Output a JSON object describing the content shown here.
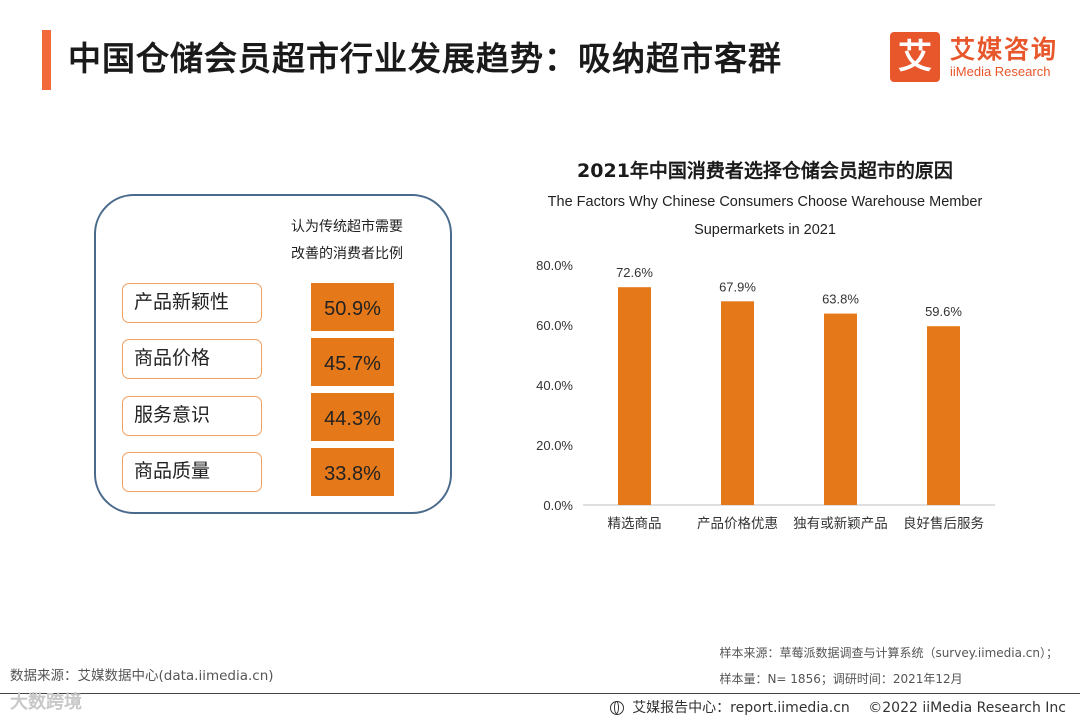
{
  "header": {
    "title": "中国仓储会员超市行业发展趋势：吸纳超市客群",
    "accent_color": "#f2693a"
  },
  "logo": {
    "glyph": "艾",
    "cn": "艾媒咨询",
    "en": "iiMedia Research",
    "color": "#e8562b"
  },
  "left_panel": {
    "header_line1": "认为传统超市需要",
    "header_line2": "改善的消费者比例",
    "items": [
      {
        "label": "产品新颖性",
        "value": "50.9%"
      },
      {
        "label": "商品价格",
        "value": "45.7%"
      },
      {
        "label": "服务意识",
        "value": "44.3%"
      },
      {
        "label": "商品质量",
        "value": "33.8%"
      }
    ],
    "bar_color": "#e57919"
  },
  "chart_data": {
    "type": "bar",
    "title": "2021年中国消费者选择仓储会员超市的原因",
    "subtitle_line1": "The Factors Why Chinese Consumers Choose Warehouse Member",
    "subtitle_line2": "Supermarkets in 2021",
    "categories": [
      "精选商品",
      "产品价格优惠",
      "独有或新颖产品",
      "良好售后服务"
    ],
    "values": [
      72.6,
      67.9,
      63.8,
      59.6
    ],
    "value_labels": [
      "72.6%",
      "67.9%",
      "63.8%",
      "59.6%"
    ],
    "ylim": [
      0,
      80
    ],
    "yticks": [
      0,
      20,
      40,
      60,
      80
    ],
    "ytick_labels": [
      "0.0%",
      "20.0%",
      "40.0%",
      "60.0%",
      "80.0%"
    ],
    "xlabel": "",
    "ylabel": "",
    "grid": false,
    "bar_color": "#e57919"
  },
  "footer": {
    "source_left": "数据来源：艾媒数据中心(data.iimedia.cn)",
    "sample_source": "样本来源：草莓派数据调查与计算系统（survey.iimedia.cn）；",
    "sample_size": "样本量：N= 1856；调研时间：2021年12月",
    "watermark": "大数跨境",
    "report_center": "艾媒报告中心：report.iimedia.cn",
    "copyright": "©2022  iiMedia Research  Inc"
  }
}
